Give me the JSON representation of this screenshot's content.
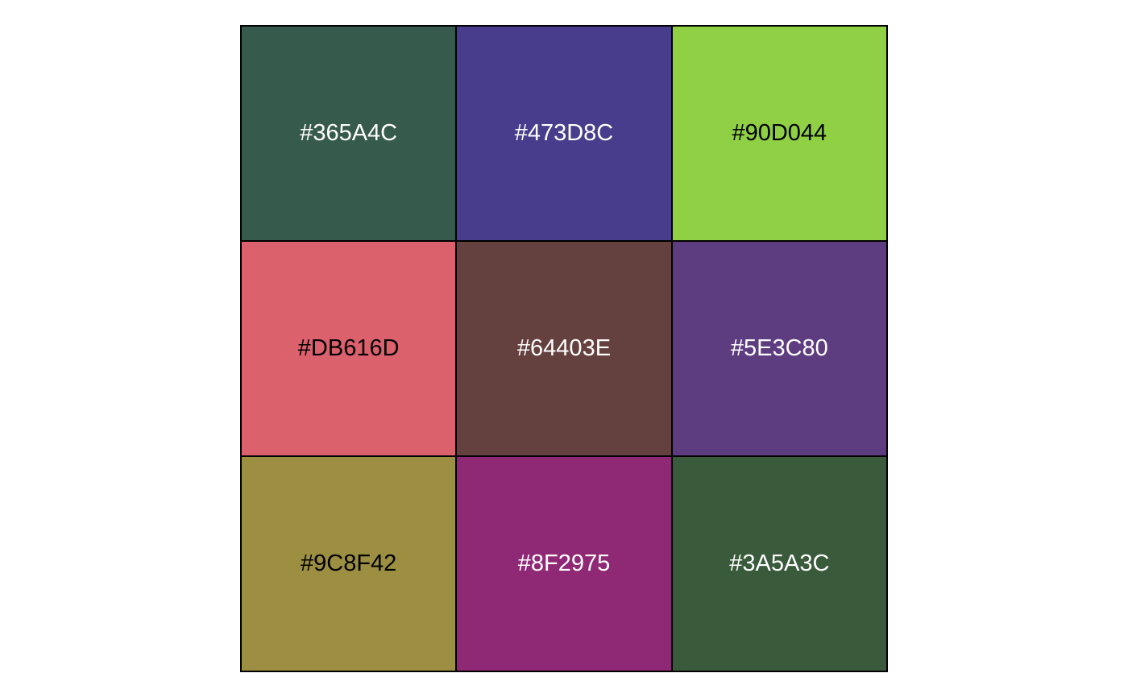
{
  "swatches": [
    {
      "label": "#365A4C",
      "fill": "#365A4C",
      "text_color": "#FFFFFF"
    },
    {
      "label": "#473D8C",
      "fill": "#473D8C",
      "text_color": "#FFFFFF"
    },
    {
      "label": "#90D044",
      "fill": "#90D044",
      "text_color": "#000000"
    },
    {
      "label": "#DB616D",
      "fill": "#DB616D",
      "text_color": "#000000"
    },
    {
      "label": "#64403E",
      "fill": "#64403E",
      "text_color": "#FFFFFF"
    },
    {
      "label": "#5E3C80",
      "fill": "#5E3C80",
      "text_color": "#FFFFFF"
    },
    {
      "label": "#9C8F42",
      "fill": "#9C8F42",
      "text_color": "#000000"
    },
    {
      "label": "#8F2975",
      "fill": "#8F2975",
      "text_color": "#FFFFFF"
    },
    {
      "label": "#3A5A3C",
      "fill": "#3A5A3C",
      "text_color": "#FFFFFF"
    }
  ]
}
